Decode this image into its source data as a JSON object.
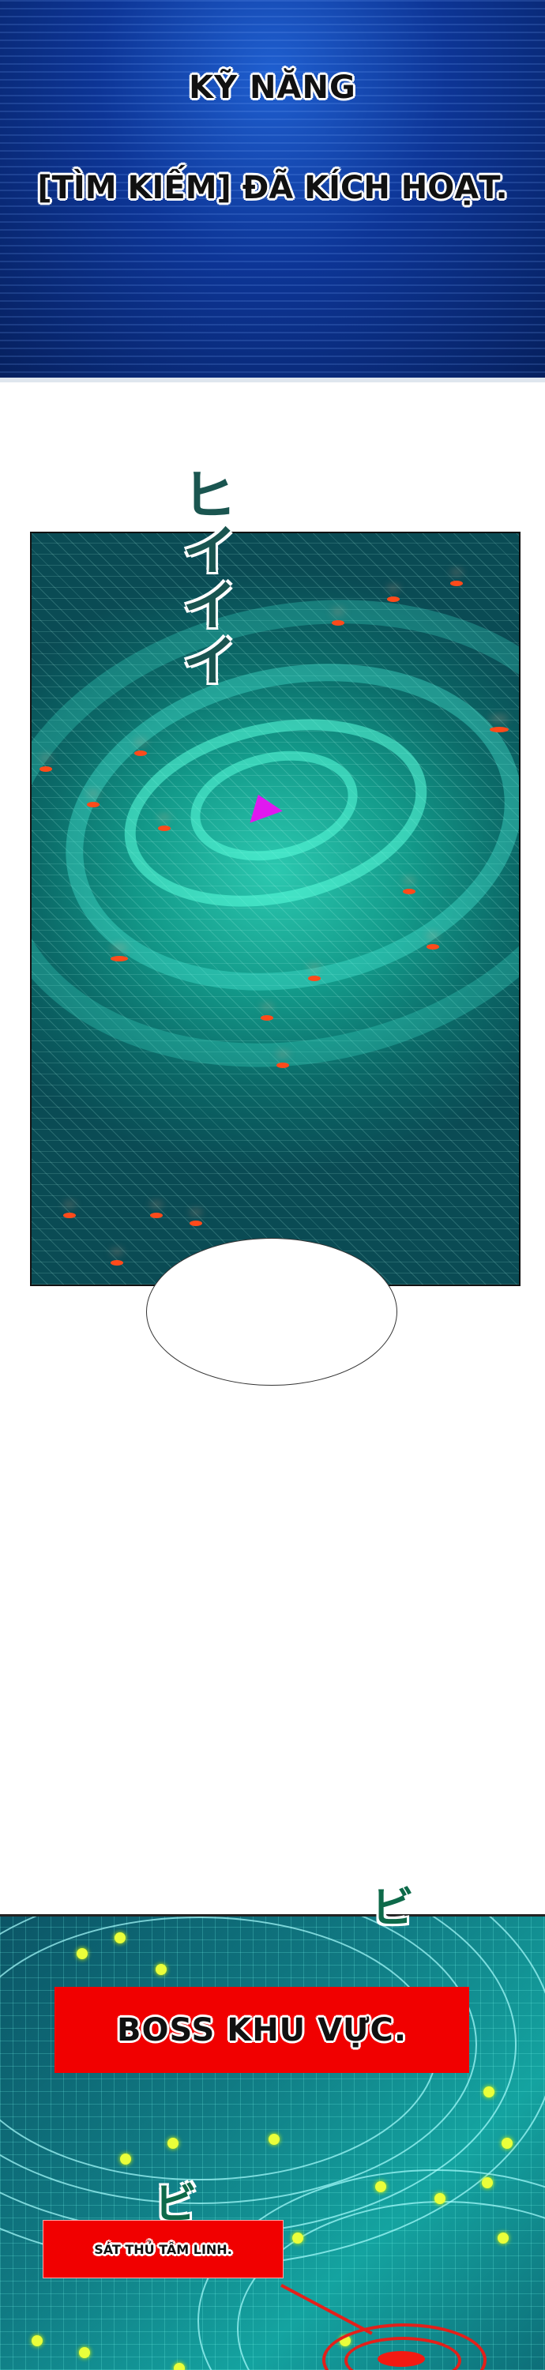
{
  "panel_1": {
    "skill_title": "KỸ NĂNG",
    "skill_text": "[TÌM KIẾM] ĐÃ KÍCH HOẠT."
  },
  "panel_2": {
    "sound_effect": "ヒイイイ",
    "speech_bubble": ""
  },
  "panel_3": {
    "sound_effect_1": "ビ",
    "sound_effect_2": "ビ",
    "boss_label": "BOSS KHU VỰC.",
    "boss_name": "SÁT THỦ TÂM LINH."
  },
  "colors": {
    "label_red": "#f10000",
    "scan_teal": "#139a8a",
    "sky_blue": "#0d3596",
    "marker_yellow": "#eaff3a",
    "enemy_red": "#ff4a1a"
  }
}
